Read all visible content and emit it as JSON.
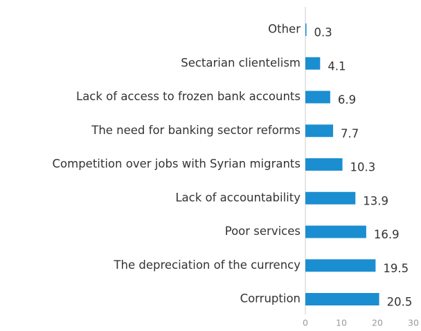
{
  "chart_data": {
    "type": "barh",
    "categories": [
      "Other",
      "Sectarian clientelism",
      "Lack of access to frozen bank accounts",
      "The need for banking sector reforms",
      "Competition over jobs with Syrian migrants",
      "Lack of accountability",
      "Poor services",
      "The depreciation of the currency",
      "Corruption"
    ],
    "values": [
      0.3,
      4.1,
      6.9,
      7.7,
      10.3,
      13.9,
      16.9,
      19.5,
      20.5
    ],
    "color": "#1b8ed1",
    "xlim": [
      0,
      30
    ],
    "xticks": [
      0,
      10,
      20,
      30
    ]
  }
}
